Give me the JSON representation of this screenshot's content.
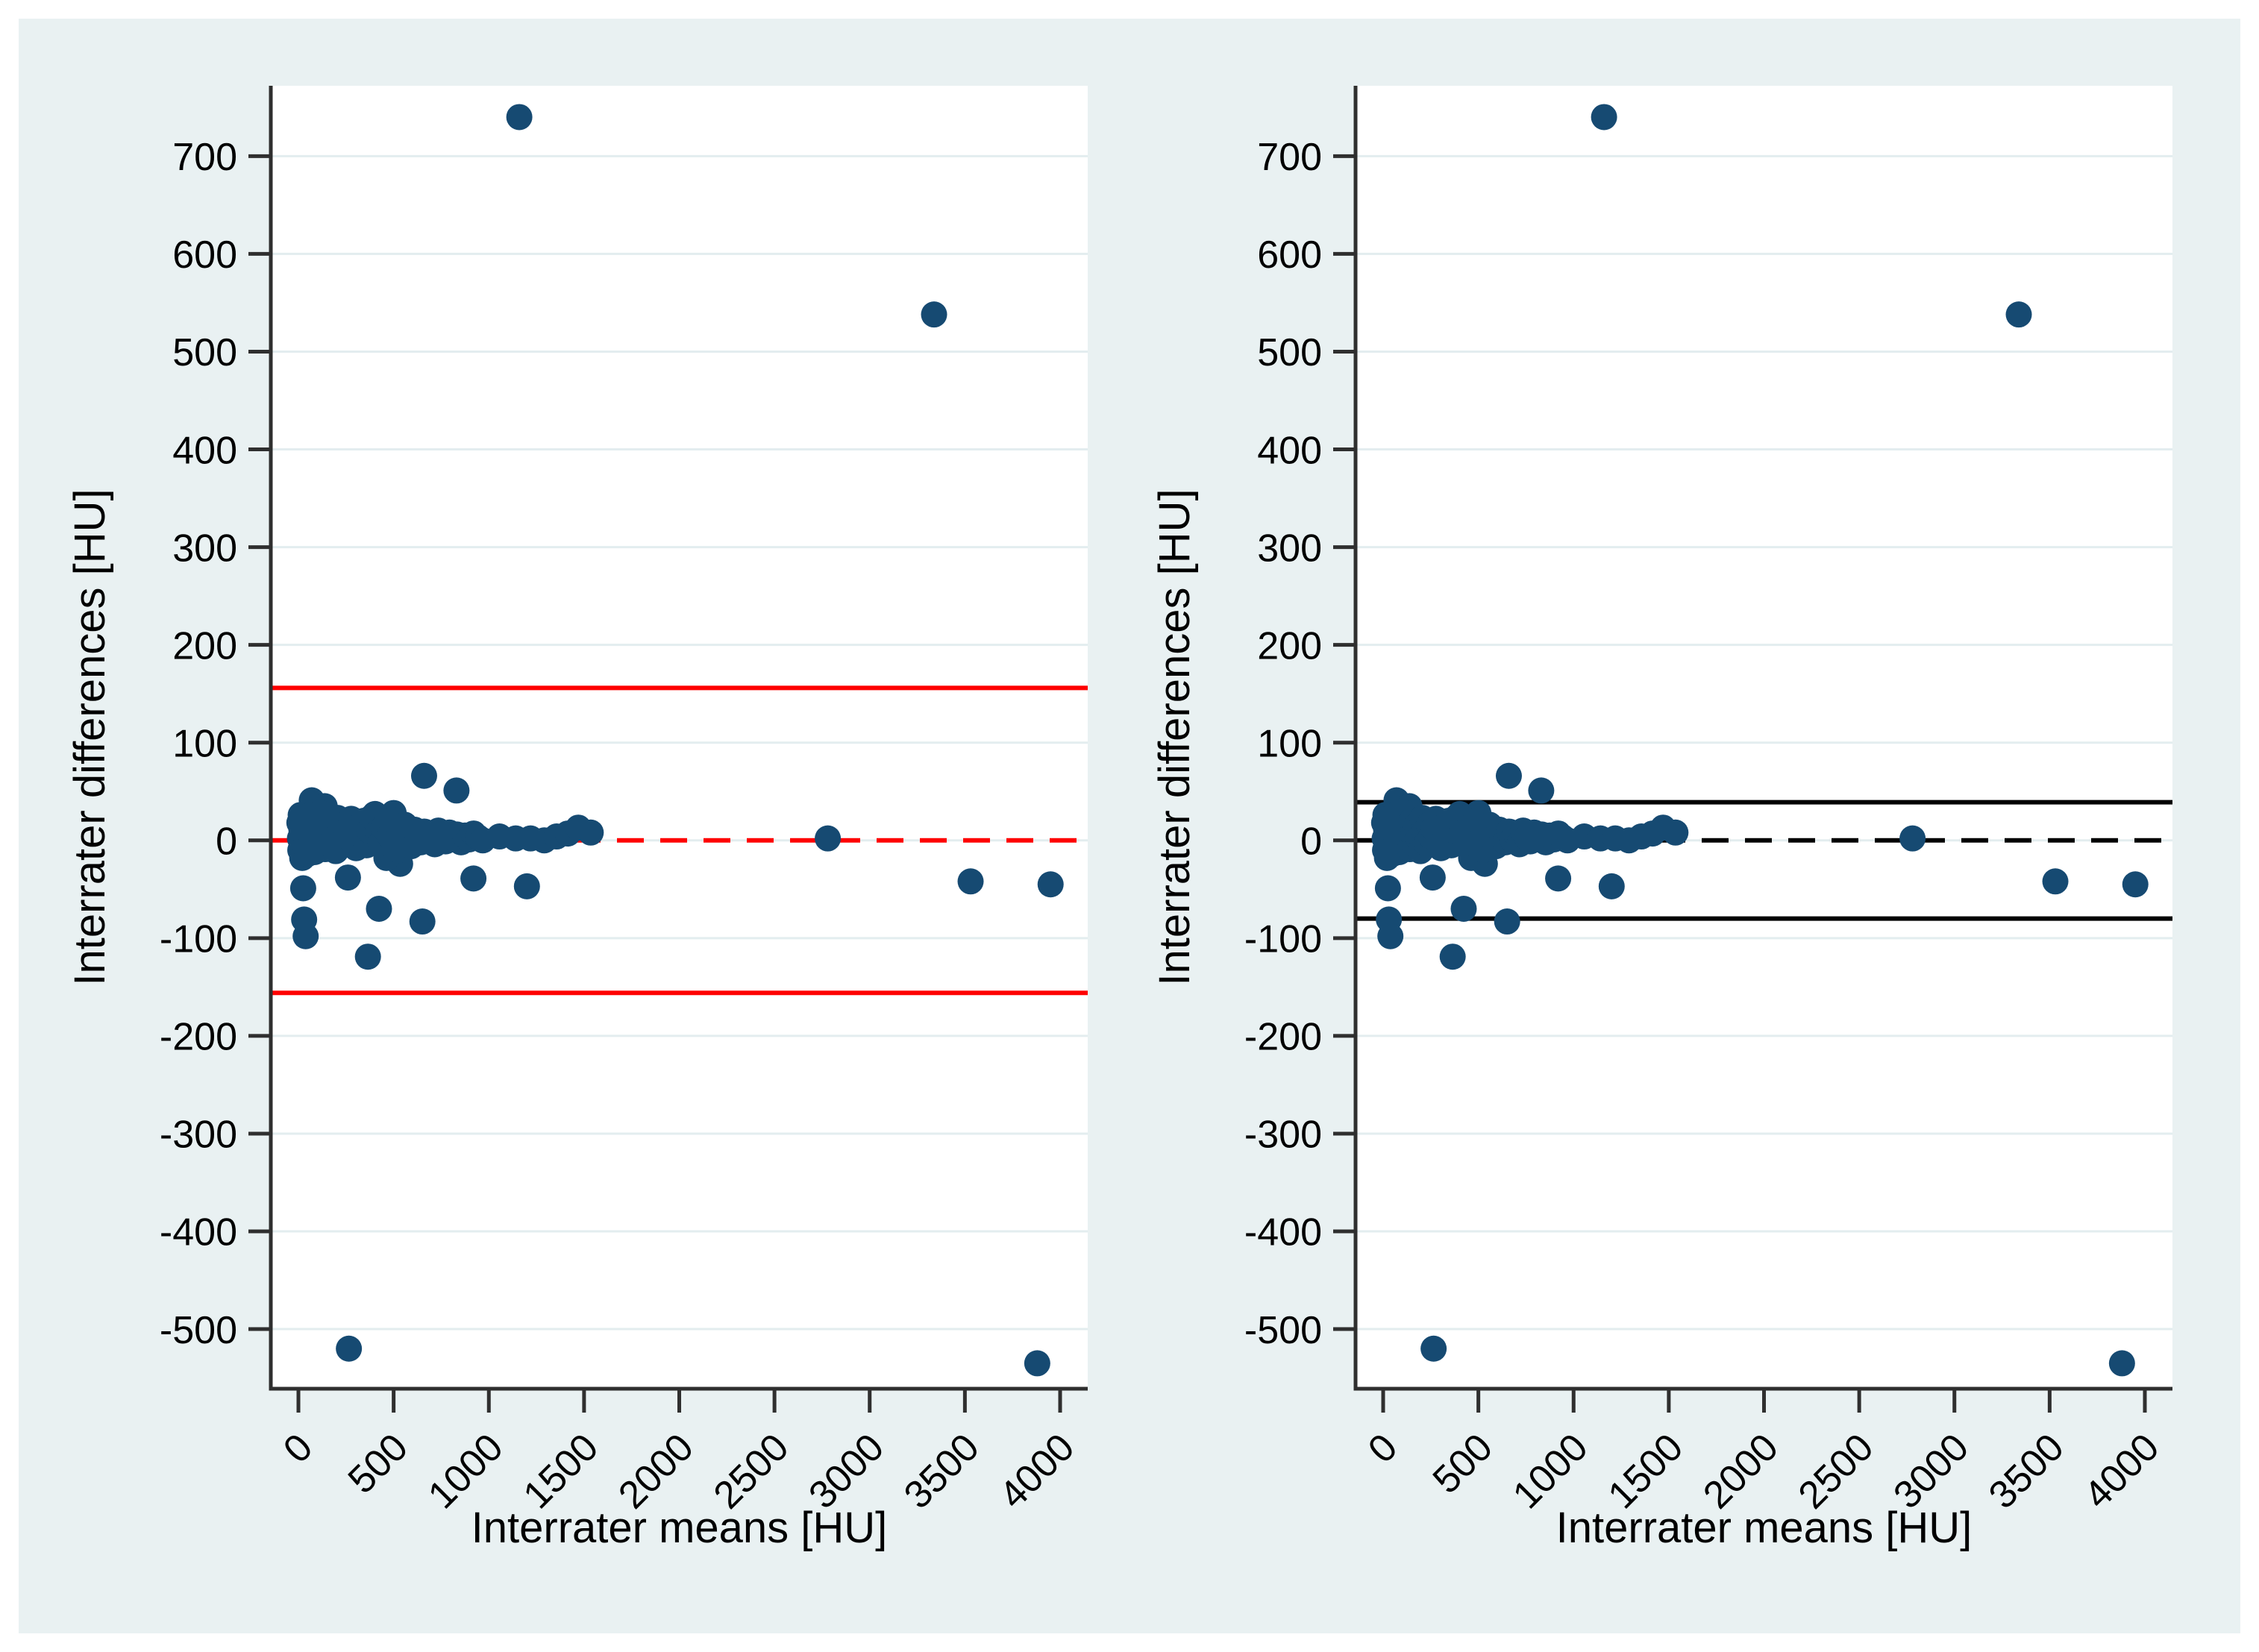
{
  "style": {
    "outer_border_color": "#ffffff",
    "background": "#e9f1f2",
    "plot_background": "#ffffff",
    "grid_color": "#e3edef",
    "axis_color": "#2f2f2f",
    "text_color": "#000000",
    "marker_color": "#164a72",
    "left_line_color": "#fe0000",
    "right_line_color": "#000000"
  },
  "chart_data": {
    "type": "scatter",
    "layout": "two-panel Bland-Altman agreement plot",
    "xlabel": "Interrater means [HU]",
    "ylabel": "Interrater differences [HU]",
    "x_ticks": [
      0,
      500,
      1000,
      1500,
      2000,
      2500,
      3000,
      3500,
      4000
    ],
    "y_ticks": [
      -500,
      -400,
      -300,
      -200,
      -100,
      0,
      100,
      200,
      300,
      400,
      500,
      600,
      700
    ],
    "x_range": [
      -145,
      4145
    ],
    "y_range": [
      -561,
      772
    ],
    "grid": "horizontal",
    "legend": "none",
    "marker": {
      "shape": "circle",
      "color": "#164a72",
      "radius_px": 17.5
    },
    "panels": [
      {
        "name": "left",
        "reference_lines": [
          {
            "y": 0,
            "style": "dashed",
            "color": "#fe0000",
            "meaning": "mean bias"
          },
          {
            "y": 156,
            "style": "solid",
            "color": "#fe0000",
            "meaning": "upper limit of agreement"
          },
          {
            "y": -156,
            "style": "solid",
            "color": "#fe0000",
            "meaning": "lower limit of agreement"
          }
        ]
      },
      {
        "name": "right",
        "reference_lines": [
          {
            "y": 0,
            "style": "dashed",
            "color": "#000000",
            "meaning": "median bias"
          },
          {
            "y": 39,
            "style": "solid",
            "color": "#000000",
            "meaning": "upper limit of agreement"
          },
          {
            "y": -80,
            "style": "solid",
            "color": "#000000",
            "meaning": "lower limit of agreement"
          }
        ]
      }
    ],
    "points": [
      [
        1160,
        740
      ],
      [
        3338,
        538
      ],
      [
        2780,
        2
      ],
      [
        3530,
        -42
      ],
      [
        3950,
        -45
      ],
      [
        3880,
        -535
      ],
      [
        265,
        -520
      ],
      [
        1200,
        -47
      ],
      [
        919,
        -39
      ],
      [
        830,
        51
      ],
      [
        660,
        66
      ],
      [
        651,
        -83
      ],
      [
        534,
        -24
      ],
      [
        462,
        -18
      ],
      [
        423,
        -70
      ],
      [
        365,
        -119
      ],
      [
        260,
        -38
      ],
      [
        25,
        -49
      ],
      [
        30,
        -81
      ],
      [
        38,
        -98
      ],
      [
        70,
        41
      ],
      [
        138,
        35
      ],
      [
        500,
        28
      ],
      [
        402,
        27
      ],
      [
        5,
        18
      ],
      [
        8,
        2
      ],
      [
        10,
        -10
      ],
      [
        12,
        26
      ],
      [
        16,
        10
      ],
      [
        20,
        -18
      ],
      [
        24,
        22
      ],
      [
        28,
        6
      ],
      [
        33,
        -6
      ],
      [
        38,
        14
      ],
      [
        43,
        0
      ],
      [
        48,
        -14
      ],
      [
        54,
        25
      ],
      [
        60,
        8
      ],
      [
        66,
        -4
      ],
      [
        72,
        18
      ],
      [
        78,
        3
      ],
      [
        85,
        -12
      ],
      [
        92,
        22
      ],
      [
        100,
        10
      ],
      [
        107,
        -2
      ],
      [
        115,
        28
      ],
      [
        123,
        13
      ],
      [
        131,
        0
      ],
      [
        140,
        -9
      ],
      [
        150,
        20
      ],
      [
        158,
        6
      ],
      [
        167,
        -4
      ],
      [
        176,
        15
      ],
      [
        186,
        2
      ],
      [
        196,
        -11
      ],
      [
        206,
        23
      ],
      [
        217,
        9
      ],
      [
        228,
        -3
      ],
      [
        240,
        16
      ],
      [
        252,
        4
      ],
      [
        264,
        12
      ],
      [
        277,
        22
      ],
      [
        290,
        1
      ],
      [
        303,
        -8
      ],
      [
        316,
        14
      ],
      [
        330,
        5
      ],
      [
        344,
        20
      ],
      [
        358,
        -5
      ],
      [
        372,
        10
      ],
      [
        387,
        24
      ],
      [
        417,
        8
      ],
      [
        432,
        -3
      ],
      [
        447,
        13
      ],
      [
        478,
        5
      ],
      [
        494,
        21
      ],
      [
        510,
        0
      ],
      [
        526,
        -10
      ],
      [
        542,
        9
      ],
      [
        558,
        16
      ],
      [
        575,
        2
      ],
      [
        592,
        -6
      ],
      [
        609,
        11
      ],
      [
        626,
        4
      ],
      [
        643,
        -2
      ],
      [
        661,
        9
      ],
      [
        679,
        1
      ],
      [
        697,
        7
      ],
      [
        716,
        -4
      ],
      [
        735,
        10
      ],
      [
        754,
        3
      ],
      [
        773,
        -1
      ],
      [
        793,
        8
      ],
      [
        813,
        2
      ],
      [
        833,
        6
      ],
      [
        854,
        -2
      ],
      [
        875,
        5
      ],
      [
        897,
        1
      ],
      [
        920,
        7
      ],
      [
        944,
        3
      ],
      [
        968,
        0
      ],
      [
        1056,
        4
      ],
      [
        1141,
        2
      ],
      [
        1219,
        2
      ],
      [
        1291,
        0
      ],
      [
        1356,
        4
      ],
      [
        1415,
        7
      ],
      [
        1470,
        13
      ],
      [
        1535,
        8
      ]
    ]
  }
}
